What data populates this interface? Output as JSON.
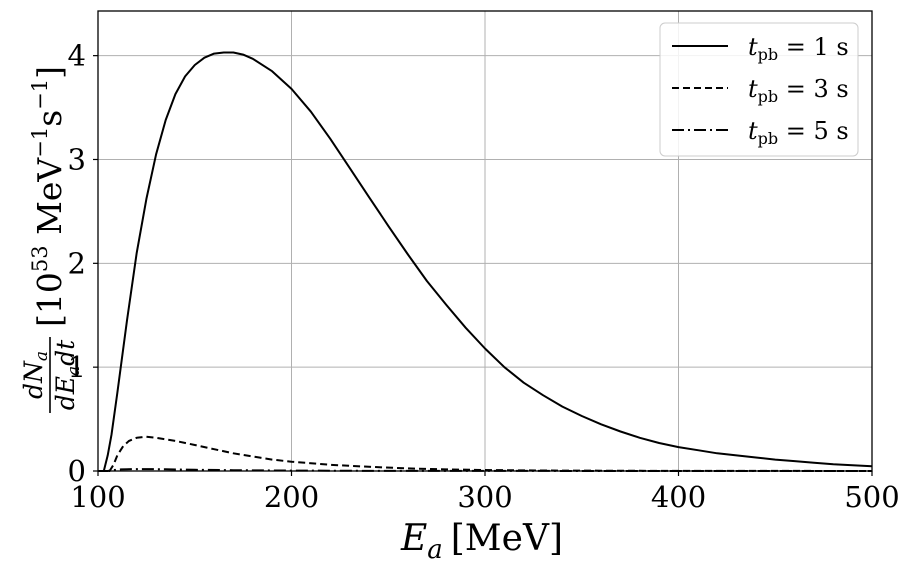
{
  "chart_data": {
    "type": "line",
    "xlabel": {
      "var": "E",
      "sub": "a",
      "unit": "[MeV]"
    },
    "ylabel": {
      "num": "dN",
      "num_sub": "a",
      "den": "dE",
      "den_sub": "a",
      "den_tail": "dt",
      "unit_open": "[10",
      "unit_exp": "53",
      "unit_mid": " MeV",
      "unit_exp2": "−1",
      "unit_mid2": "s",
      "unit_exp3": "−1",
      "unit_close": "]"
    },
    "xlim": [
      100,
      500
    ],
    "ylim": [
      0,
      4.43
    ],
    "xticks": [
      100,
      200,
      300,
      400,
      500
    ],
    "yticks": [
      0,
      1,
      2,
      3,
      4
    ],
    "grid": true,
    "legend_position": "top-right",
    "series": [
      {
        "name": "t_pb = 1 s",
        "legend": {
          "var": "t",
          "sub": "pb",
          "rest": " = 1 s"
        },
        "dash": "solid",
        "color": "#000000",
        "x": [
          103,
          105,
          107,
          110,
          115,
          120,
          125,
          130,
          135,
          140,
          145,
          150,
          155,
          160,
          165,
          170,
          175,
          180,
          190,
          200,
          210,
          220,
          230,
          240,
          250,
          260,
          270,
          280,
          290,
          300,
          310,
          320,
          330,
          340,
          350,
          360,
          370,
          380,
          390,
          400,
          410,
          420,
          430,
          440,
          450,
          460,
          470,
          480,
          490,
          500
        ],
        "y": [
          0.0,
          0.15,
          0.35,
          0.75,
          1.45,
          2.1,
          2.62,
          3.05,
          3.38,
          3.63,
          3.8,
          3.91,
          3.98,
          4.02,
          4.03,
          4.03,
          4.01,
          3.97,
          3.85,
          3.68,
          3.46,
          3.2,
          2.92,
          2.64,
          2.36,
          2.09,
          1.83,
          1.6,
          1.38,
          1.18,
          1.0,
          0.85,
          0.73,
          0.62,
          0.53,
          0.45,
          0.38,
          0.32,
          0.27,
          0.23,
          0.2,
          0.17,
          0.15,
          0.13,
          0.11,
          0.095,
          0.08,
          0.065,
          0.055,
          0.045
        ]
      },
      {
        "name": "t_pb = 3 s",
        "legend": {
          "var": "t",
          "sub": "pb",
          "rest": " = 3 s"
        },
        "dash": "dashed",
        "color": "#000000",
        "x": [
          106,
          108,
          110,
          113,
          116,
          120,
          125,
          130,
          140,
          150,
          160,
          170,
          180,
          190,
          200,
          220,
          240,
          260,
          280,
          300,
          320,
          340,
          360,
          380,
          400,
          450,
          500
        ],
        "y": [
          0.0,
          0.06,
          0.15,
          0.24,
          0.29,
          0.32,
          0.33,
          0.32,
          0.29,
          0.25,
          0.21,
          0.17,
          0.14,
          0.11,
          0.09,
          0.06,
          0.04,
          0.025,
          0.015,
          0.01,
          0.006,
          0.004,
          0.003,
          0.002,
          0.001,
          0.0005,
          0.0
        ]
      },
      {
        "name": "t_pb = 5 s",
        "legend": {
          "var": "t",
          "sub": "pb",
          "rest": " = 5 s"
        },
        "dash": "dashdot",
        "color": "#000000",
        "x": [
          105,
          108,
          112,
          118,
          125,
          135,
          150,
          170,
          200,
          250,
          300,
          400,
          500
        ],
        "y": [
          0.0,
          0.01,
          0.015,
          0.018,
          0.018,
          0.016,
          0.012,
          0.008,
          0.004,
          0.001,
          0.0005,
          0.0,
          0.0
        ]
      }
    ]
  }
}
